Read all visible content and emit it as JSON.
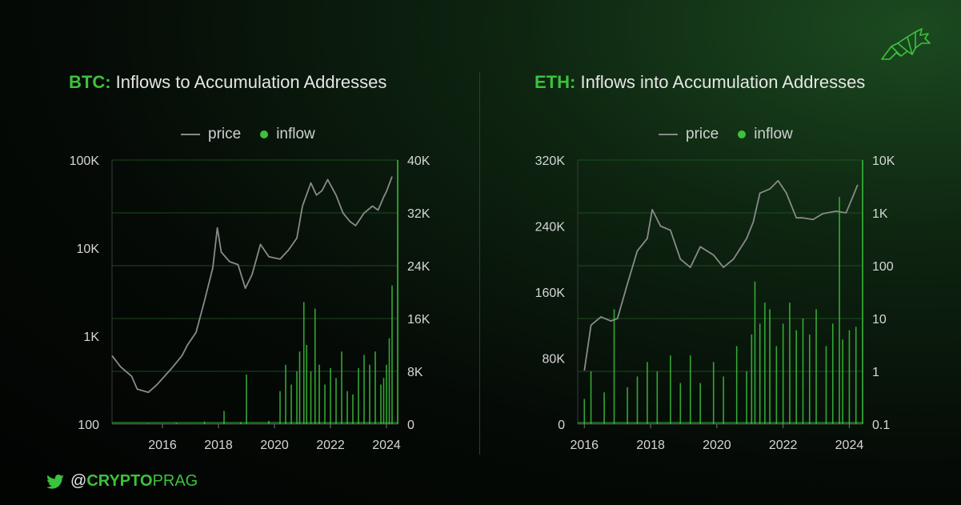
{
  "colors": {
    "accent": "#3cc23c",
    "price": "#8a8a8a",
    "grid": "#1f5a23"
  },
  "footer": {
    "at": "@",
    "bold": "CRYPTO",
    "light": "PRAG",
    "icon": "twitter-bird-icon"
  },
  "logo": {
    "icon": "bull-logo-icon"
  },
  "chart_data": [
    {
      "type": "line",
      "ticker": "BTC:",
      "title": "Inflows to Accumulation Addresses",
      "legend": [
        "price",
        "inflow"
      ],
      "legend_placement": "top",
      "x_ticks": [
        "2016",
        "2018",
        "2020",
        "2022",
        "2024"
      ],
      "left_axis": {
        "scale": "log",
        "ticks": [
          "100",
          "1K",
          "10K",
          "100K"
        ],
        "ylim": [
          100,
          100000
        ]
      },
      "right_axis": {
        "scale": "linear",
        "ticks": [
          "0",
          "8K",
          "16K",
          "24K",
          "32K",
          "40K"
        ],
        "ylim": [
          0,
          40000
        ]
      },
      "series": [
        {
          "name": "price",
          "x": [
            2014.2,
            2014.5,
            2014.9,
            2015.1,
            2015.5,
            2015.8,
            2016.3,
            2016.7,
            2016.9,
            2017.2,
            2017.5,
            2017.8,
            2017.96,
            2018.1,
            2018.4,
            2018.7,
            2018.96,
            2019.2,
            2019.5,
            2019.8,
            2020.2,
            2020.5,
            2020.8,
            2021.0,
            2021.3,
            2021.5,
            2021.7,
            2021.9,
            2022.2,
            2022.45,
            2022.7,
            2022.9,
            2023.2,
            2023.5,
            2023.7,
            2023.9,
            2024.0,
            2024.2
          ],
          "y": [
            600,
            450,
            350,
            250,
            230,
            280,
            420,
            600,
            800,
            1100,
            2500,
            6000,
            17000,
            9000,
            7000,
            6500,
            3500,
            5000,
            11000,
            8000,
            7500,
            9500,
            13000,
            30000,
            55000,
            40000,
            45000,
            60000,
            40000,
            25000,
            20000,
            18000,
            25000,
            30000,
            27000,
            38000,
            44000,
            65000
          ]
        },
        {
          "name": "inflow",
          "x": [
            2014.2,
            2015.5,
            2016.5,
            2017.5,
            2018.2,
            2018.8,
            2019.0,
            2019.8,
            2020.2,
            2020.4,
            2020.6,
            2020.8,
            2020.9,
            2021.05,
            2021.15,
            2021.3,
            2021.45,
            2021.6,
            2021.8,
            2022.0,
            2022.2,
            2022.4,
            2022.6,
            2022.8,
            2023.0,
            2023.2,
            2023.4,
            2023.6,
            2023.8,
            2023.9,
            2024.0,
            2024.1,
            2024.2
          ],
          "y": [
            0,
            100,
            200,
            400,
            2000,
            300,
            7500,
            500,
            5000,
            9000,
            6000,
            8000,
            11000,
            18500,
            12000,
            8000,
            17500,
            9000,
            6000,
            8500,
            7000,
            11000,
            5000,
            4500,
            8500,
            10500,
            9000,
            11000,
            6000,
            7000,
            9000,
            13000,
            21000
          ]
        }
      ]
    },
    {
      "type": "line",
      "ticker": "ETH:",
      "title": "Inflows into Accumulation Addresses",
      "legend": [
        "price",
        "inflow"
      ],
      "legend_placement": "top",
      "x_ticks": [
        "2016",
        "2018",
        "2020",
        "2022",
        "2024"
      ],
      "left_axis": {
        "scale": "linear",
        "ticks": [
          "0",
          "80K",
          "160K",
          "240K",
          "320K"
        ],
        "ylim": [
          0,
          320000
        ]
      },
      "right_axis": {
        "scale": "log",
        "ticks": [
          "0.1",
          "1",
          "10",
          "100",
          "1K",
          "10K"
        ],
        "ylim": [
          0.1,
          10000
        ]
      },
      "series": [
        {
          "name": "price",
          "x": [
            2016.0,
            2016.2,
            2016.5,
            2016.8,
            2017.0,
            2017.3,
            2017.6,
            2017.9,
            2018.05,
            2018.3,
            2018.6,
            2018.9,
            2019.2,
            2019.5,
            2019.9,
            2020.2,
            2020.5,
            2020.9,
            2021.1,
            2021.3,
            2021.6,
            2021.85,
            2022.1,
            2022.4,
            2022.6,
            2022.9,
            2023.2,
            2023.6,
            2023.9,
            2024.1,
            2024.25
          ],
          "y": [
            65000,
            120000,
            130000,
            125000,
            128000,
            170000,
            210000,
            225000,
            260000,
            240000,
            235000,
            200000,
            190000,
            215000,
            205000,
            190000,
            200000,
            225000,
            245000,
            280000,
            285000,
            295000,
            280000,
            250000,
            250000,
            248000,
            255000,
            258000,
            256000,
            275000,
            290000
          ]
        },
        {
          "name": "inflow",
          "x": [
            2016.0,
            2016.2,
            2016.6,
            2016.9,
            2017.3,
            2017.6,
            2017.9,
            2018.2,
            2018.6,
            2018.9,
            2019.2,
            2019.5,
            2019.9,
            2020.2,
            2020.6,
            2020.9,
            2021.05,
            2021.15,
            2021.3,
            2021.45,
            2021.6,
            2021.8,
            2022.0,
            2022.2,
            2022.4,
            2022.6,
            2022.8,
            2023.0,
            2023.3,
            2023.5,
            2023.7,
            2023.8,
            2024.0,
            2024.2
          ],
          "y": [
            0.3,
            1,
            0.4,
            15,
            0.5,
            0.8,
            1.5,
            1,
            2,
            0.6,
            2,
            0.6,
            1.5,
            0.8,
            3,
            1,
            5,
            50,
            8,
            20,
            15,
            3,
            8,
            20,
            6,
            10,
            5,
            15,
            3,
            8,
            2000,
            4,
            6,
            7
          ]
        }
      ]
    }
  ]
}
